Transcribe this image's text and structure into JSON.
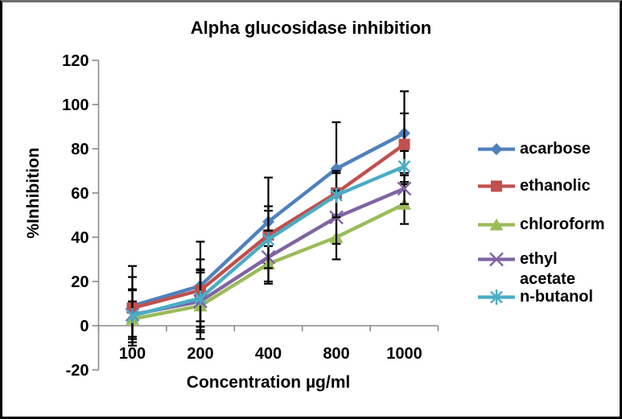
{
  "chart_data": {
    "type": "line",
    "title": "Alpha glucosidase inhibition",
    "xlabel": "Concentration µg/ml",
    "ylabel": "%Inhibition",
    "categories": [
      "100",
      "200",
      "400",
      "800",
      "1000"
    ],
    "yticks": [
      120,
      100,
      80,
      60,
      40,
      20,
      0,
      -20
    ],
    "ylim": [
      -20,
      120
    ],
    "grid": false,
    "legend_position": "right",
    "error_bars": true,
    "axis_color": "#8a8a8a",
    "error_bar_color": "#000000",
    "series": [
      {
        "name": "acarbose",
        "color": "#4F81BD",
        "marker": "diamond",
        "values": [
          9,
          18,
          47,
          71,
          87
        ],
        "errors": [
          18,
          20,
          20,
          21,
          19
        ]
      },
      {
        "name": "ethanolic",
        "color": "#C0504D",
        "marker": "square",
        "values": [
          8,
          16,
          41,
          60,
          82
        ],
        "errors": [
          14,
          14,
          13,
          10,
          14
        ]
      },
      {
        "name": "chloroform",
        "color": "#9BBB59",
        "marker": "triangle",
        "values": [
          3,
          9,
          28,
          40,
          55
        ],
        "errors": [
          8,
          15,
          8,
          10,
          9
        ]
      },
      {
        "name": "ethyl acetate",
        "color": "#8064A2",
        "marker": "x",
        "values": [
          5,
          11,
          31,
          49,
          62
        ],
        "errors": [
          11,
          14,
          12,
          12,
          7
        ]
      },
      {
        "name": "n-butanol",
        "color": "#4BACC6",
        "marker": "asterisk",
        "values": [
          4.5,
          12.5,
          39,
          59,
          72
        ],
        "errors": [
          12,
          13,
          13,
          10,
          7
        ]
      }
    ]
  }
}
